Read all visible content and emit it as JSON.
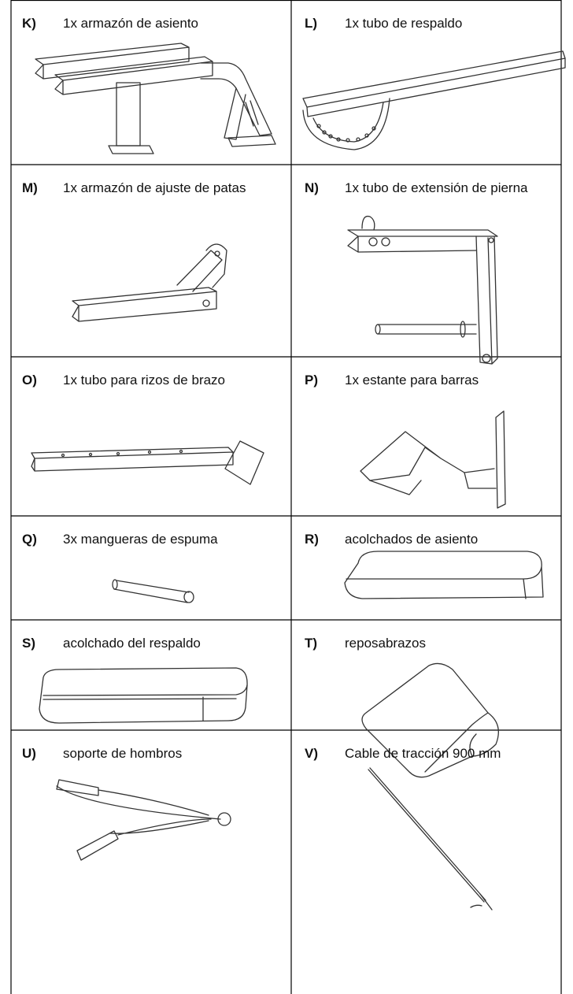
{
  "items": [
    {
      "letter": "K)",
      "label": "1x armazón de asiento"
    },
    {
      "letter": "L)",
      "label": "1x tubo de respaldo"
    },
    {
      "letter": "M)",
      "label": "1x armazón de ajuste de patas"
    },
    {
      "letter": "N)",
      "label": "1x tubo de extensión de pierna"
    },
    {
      "letter": "O)",
      "label": "1x tubo para rizos de brazo"
    },
    {
      "letter": "P)",
      "label": "1x estante para barras"
    },
    {
      "letter": "Q)",
      "label": "3x mangueras de espuma"
    },
    {
      "letter": "R)",
      "label": "acolchados de asiento"
    },
    {
      "letter": "S)",
      "label": "acolchado del respaldo"
    },
    {
      "letter": "T)",
      "label": "reposabrazos"
    },
    {
      "letter": "U)",
      "label": "soporte de hombros"
    },
    {
      "letter": "V)",
      "label": "Cable de tracción 900 mm"
    }
  ]
}
